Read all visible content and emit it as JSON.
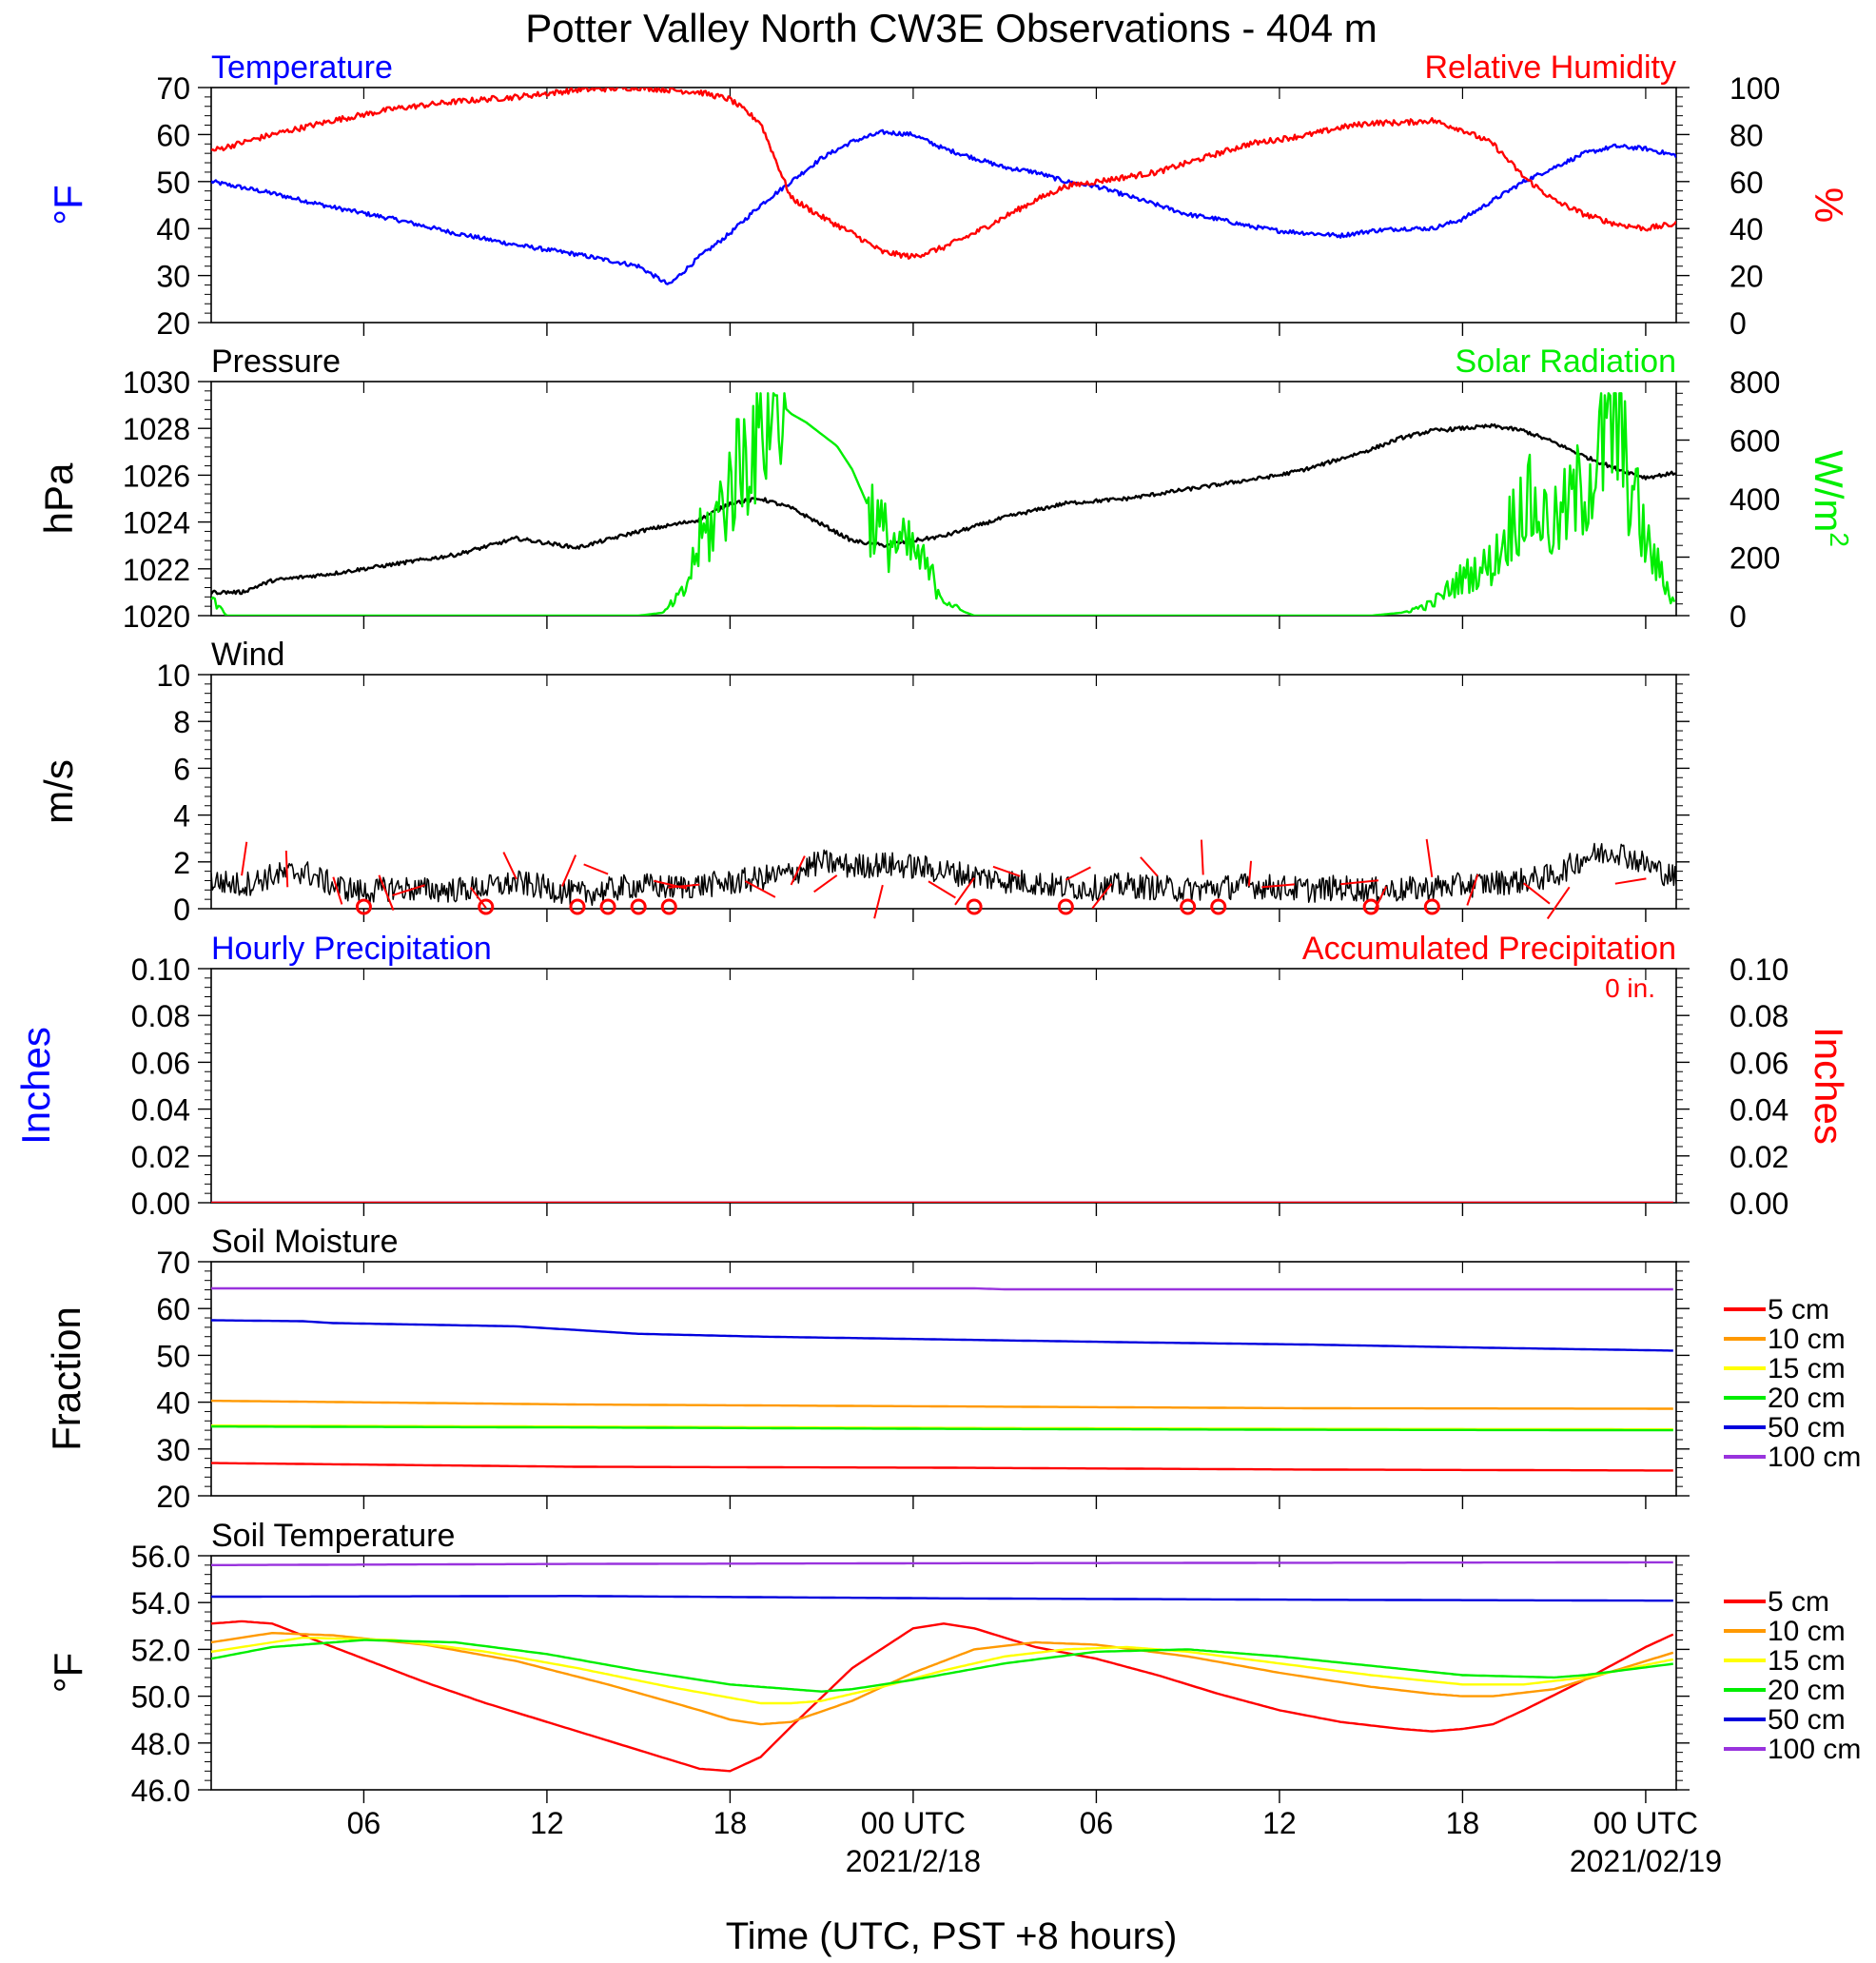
{
  "figure": {
    "title": "Potter Valley North CW3E Observations - 404 m",
    "xlabel": "Time (UTC, PST +8 hours)",
    "x_ticks": [
      {
        "t": 6,
        "label": "06",
        "sub": ""
      },
      {
        "t": 12,
        "label": "12",
        "sub": ""
      },
      {
        "t": 18,
        "label": "18",
        "sub": ""
      },
      {
        "t": 24,
        "label": "00 UTC",
        "sub": "2021/2/18"
      },
      {
        "t": 30,
        "label": "06",
        "sub": ""
      },
      {
        "t": 36,
        "label": "12",
        "sub": ""
      },
      {
        "t": 42,
        "label": "18",
        "sub": ""
      },
      {
        "t": 48,
        "label": "00 UTC",
        "sub": "2021/02/19"
      }
    ]
  },
  "colors": {
    "temperature": "#0000ff",
    "humidity": "#ff0000",
    "pressure": "#000000",
    "solar": "#00ee00",
    "wind": "#000000",
    "wind_barb": "#ff0000",
    "soil_5": "#ff0000",
    "soil_10": "#ff9900",
    "soil_15": "#ffff00",
    "soil_20": "#00ee00",
    "soil_50": "#0000dd",
    "soil_100": "#9933dd"
  },
  "chart_data": [
    {
      "type": "line",
      "id": "temperature_humidity",
      "left_title": "Temperature",
      "right_title": "Relative Humidity",
      "ylabel_left": "°F",
      "ylabel_right": "%",
      "x_range_hours": [
        1,
        49
      ],
      "ylim_left": [
        20,
        70
      ],
      "ylim_right": [
        0,
        100
      ],
      "yticks_left": [
        "20",
        "30",
        "40",
        "50",
        "60",
        "70"
      ],
      "yticks_right": [
        "0",
        "20",
        "40",
        "60",
        "80",
        "100"
      ],
      "series": [
        {
          "name": "Temperature",
          "axis": "left",
          "x": [
            1,
            3,
            5,
            7,
            9,
            11,
            13,
            15,
            16,
            17,
            18,
            19,
            20,
            21,
            22,
            23,
            24,
            25,
            26,
            27,
            28,
            29,
            30,
            31,
            32,
            33,
            34,
            35,
            36,
            37,
            38,
            39,
            40,
            41,
            42,
            43,
            44,
            45,
            46,
            47,
            48,
            49
          ],
          "y": [
            50,
            47.5,
            44.5,
            42,
            39,
            36.5,
            34.5,
            32,
            28,
            34,
            39,
            45,
            50,
            55,
            58.5,
            60.5,
            60,
            57,
            55,
            53,
            52,
            50,
            49,
            47,
            45,
            43,
            42,
            40.5,
            39.5,
            39,
            38.5,
            39.5,
            40,
            40,
            42,
            46,
            50,
            53,
            56,
            57.5,
            57,
            55.5
          ]
        },
        {
          "name": "Relative Humidity",
          "axis": "right",
          "x": [
            1,
            3,
            5,
            7,
            9,
            11,
            13,
            15,
            17,
            18,
            19,
            20,
            21,
            22,
            23,
            24,
            25,
            26,
            27,
            28,
            29,
            30,
            31,
            32,
            33,
            34,
            35,
            36,
            37,
            38,
            39,
            40,
            41,
            42,
            43,
            44,
            45,
            46,
            47,
            48,
            49
          ],
          "y": [
            73,
            80,
            86,
            91,
            94,
            96,
            99,
            100,
            98,
            95,
            85,
            53,
            45,
            38,
            30,
            28,
            32,
            38,
            45,
            52,
            58,
            60,
            62,
            64,
            68,
            72,
            76,
            78,
            80,
            83,
            85,
            85,
            86,
            82,
            76,
            62,
            52,
            46,
            42,
            40,
            42
          ]
        }
      ]
    },
    {
      "type": "line",
      "id": "pressure_solar",
      "left_title": "Pressure",
      "right_title": "Solar Radiation",
      "ylabel_left": "hPa",
      "ylabel_right": "W/m",
      "ylabel_right_sup": "2",
      "x_range_hours": [
        1,
        49
      ],
      "ylim_left": [
        1020,
        1030
      ],
      "ylim_right": [
        0,
        800
      ],
      "yticks_left": [
        "1020",
        "1022",
        "1024",
        "1026",
        "1028",
        "1030"
      ],
      "yticks_right": [
        "0",
        "200",
        "400",
        "600",
        "800"
      ],
      "series": [
        {
          "name": "Pressure",
          "axis": "left",
          "x": [
            1,
            2,
            3,
            5,
            7,
            9,
            11,
            13,
            15,
            17,
            18,
            19,
            20,
            21,
            22,
            23,
            24,
            25,
            26,
            27,
            28,
            29,
            30,
            31,
            32,
            33,
            34,
            35,
            36,
            37,
            38,
            39,
            40,
            41,
            42,
            43,
            44,
            45,
            46,
            47,
            48,
            49
          ],
          "y": [
            1021,
            1021,
            1021.5,
            1021.8,
            1022.2,
            1022.6,
            1023.3,
            1022.9,
            1023.6,
            1024.1,
            1024.8,
            1025,
            1024.6,
            1023.9,
            1023.2,
            1023,
            1023.2,
            1023.4,
            1023.8,
            1024.2,
            1024.5,
            1024.8,
            1024.9,
            1025,
            1025.2,
            1025.4,
            1025.6,
            1025.8,
            1026,
            1026.3,
            1026.7,
            1027.1,
            1027.6,
            1027.9,
            1028,
            1028.1,
            1027.9,
            1027.4,
            1026.8,
            1026.3,
            1025.9,
            1026.1
          ]
        },
        {
          "name": "Solar Radiation",
          "axis": "right",
          "x": [
            1,
            1.5,
            3,
            15,
            15.8,
            16.5,
            17,
            17.5,
            18,
            18.5,
            19,
            19.5,
            20,
            20.5,
            21,
            21.5,
            22,
            22.5,
            23,
            23.5,
            24,
            24.5,
            25,
            25.5,
            26,
            38,
            39,
            40,
            41,
            42,
            43,
            44,
            45,
            46,
            47,
            48,
            49
          ],
          "y": [
            60,
            0,
            0,
            0,
            10,
            80,
            250,
            320,
            450,
            560,
            680,
            740,
            690,
            660,
            620,
            580,
            500,
            380,
            280,
            240,
            220,
            150,
            60,
            20,
            0,
            0,
            0,
            10,
            40,
            130,
            180,
            400,
            300,
            450,
            650,
            250,
            30
          ]
        }
      ]
    },
    {
      "type": "line",
      "id": "wind",
      "left_title": "Wind",
      "ylabel_left": "m/s",
      "x_range_hours": [
        1,
        49
      ],
      "ylim_left": [
        0,
        10
      ],
      "yticks_left": [
        "0",
        "2",
        "4",
        "6",
        "8",
        "10"
      ],
      "series": [
        {
          "name": "Wind",
          "axis": "left",
          "x": [
            1,
            2,
            3,
            4,
            5,
            6,
            7,
            8,
            9,
            10,
            11,
            12,
            13,
            14,
            15,
            16,
            17,
            18,
            19,
            20,
            21,
            22,
            23,
            24,
            25,
            26,
            27,
            28,
            29,
            30,
            31,
            32,
            33,
            34,
            35,
            36,
            37,
            38,
            39,
            40,
            41,
            42,
            43,
            44,
            45,
            46,
            47,
            48,
            49
          ],
          "y": [
            1.2,
            1.0,
            1.4,
            1.6,
            1.0,
            0.7,
            0.9,
            0.8,
            0.8,
            0.9,
            1.1,
            0.9,
            0.6,
            0.8,
            1.0,
            0.9,
            1.0,
            1.1,
            1.3,
            1.5,
            2.0,
            1.8,
            1.9,
            1.8,
            1.6,
            1.4,
            1.2,
            1.1,
            0.9,
            0.9,
            1.0,
            0.9,
            0.8,
            0.9,
            1.0,
            0.9,
            0.8,
            0.9,
            0.8,
            0.8,
            0.9,
            1.0,
            1.1,
            1.2,
            1.4,
            2.2,
            2.5,
            1.9,
            1.3
          ]
        }
      ],
      "calm_times": [
        6,
        10,
        13,
        14,
        15,
        16,
        26,
        29,
        33,
        34,
        39,
        41
      ]
    },
    {
      "type": "line",
      "id": "precipitation",
      "left_title": "Hourly Precipitation",
      "right_title": "Accumulated Precipitation",
      "annotation": "0 in.",
      "ylabel_left": "Inches",
      "ylabel_right": "Inches",
      "x_range_hours": [
        1,
        49
      ],
      "ylim_left": [
        0,
        0.1
      ],
      "ylim_right": [
        0,
        0.1
      ],
      "yticks_left": [
        "0.00",
        "0.02",
        "0.04",
        "0.06",
        "0.08",
        "0.10"
      ],
      "yticks_right": [
        "0.00",
        "0.02",
        "0.04",
        "0.06",
        "0.08",
        "0.10"
      ],
      "series": [
        {
          "name": "Hourly Precipitation",
          "axis": "left",
          "x": [
            1,
            49
          ],
          "y": [
            0,
            0
          ]
        },
        {
          "name": "Accumulated Precipitation",
          "axis": "right",
          "x": [
            1,
            49
          ],
          "y": [
            0,
            0
          ]
        }
      ]
    },
    {
      "type": "line",
      "id": "soil_moisture",
      "left_title": "Soil Moisture",
      "ylabel_left": "Fraction",
      "x_range_hours": [
        1,
        49
      ],
      "ylim_left": [
        20,
        70
      ],
      "yticks_left": [
        "20",
        "30",
        "40",
        "50",
        "60",
        "70"
      ],
      "legend": [
        "5 cm",
        "10 cm",
        "15 cm",
        "20 cm",
        "50 cm",
        "100 cm"
      ],
      "series": [
        {
          "name": "5 cm",
          "axis": "left",
          "x": [
            1,
            13,
            25,
            37,
            49
          ],
          "y": [
            27,
            26.2,
            26,
            25.6,
            25.4
          ]
        },
        {
          "name": "10 cm",
          "axis": "left",
          "x": [
            1,
            13,
            25,
            37,
            49
          ],
          "y": [
            40.3,
            39.5,
            39.1,
            38.7,
            38.6
          ]
        },
        {
          "name": "15 cm",
          "axis": "left",
          "x": [
            1,
            13,
            25,
            37,
            49
          ],
          "y": [
            35,
            34.8,
            34.5,
            34.3,
            34.2
          ]
        },
        {
          "name": "20 cm",
          "axis": "left",
          "x": [
            1,
            13,
            25,
            37,
            49
          ],
          "y": [
            34.8,
            34.6,
            34.3,
            34.1,
            34
          ]
        },
        {
          "name": "50 cm",
          "axis": "left",
          "x": [
            1,
            4,
            5,
            11,
            13,
            14,
            15,
            19,
            25,
            31,
            37,
            43,
            49
          ],
          "y": [
            57.5,
            57.3,
            56.9,
            56.2,
            55.4,
            55,
            54.6,
            54,
            53.4,
            52.8,
            52.3,
            51.6,
            51
          ]
        },
        {
          "name": "100 cm",
          "axis": "left",
          "x": [
            1,
            13,
            26,
            27,
            37,
            49
          ],
          "y": [
            64.3,
            64.3,
            64.3,
            64.1,
            64.1,
            64.1
          ]
        }
      ]
    },
    {
      "type": "line",
      "id": "soil_temperature",
      "left_title": "Soil Temperature",
      "ylabel_left": "°F",
      "x_range_hours": [
        1,
        49
      ],
      "ylim_left": [
        46,
        56
      ],
      "yticks_left": [
        "46.0",
        "48.0",
        "50.0",
        "52.0",
        "54.0",
        "56.0"
      ],
      "legend": [
        "5 cm",
        "10 cm",
        "15 cm",
        "20 cm",
        "50 cm",
        "100 cm"
      ],
      "series": [
        {
          "name": "5 cm",
          "axis": "left",
          "x": [
            1,
            2,
            3,
            4,
            6,
            8,
            10,
            12,
            14,
            16,
            17,
            18,
            19,
            20,
            22,
            24,
            25,
            26,
            27,
            28,
            30,
            32,
            34,
            36,
            38,
            40,
            41,
            42,
            43,
            44,
            46,
            48,
            49
          ],
          "y": [
            53.1,
            53.2,
            53.1,
            52.6,
            51.6,
            50.6,
            49.7,
            48.9,
            48.1,
            47.3,
            46.9,
            46.8,
            47.4,
            48.7,
            51.2,
            52.9,
            53.1,
            52.9,
            52.5,
            52.1,
            51.6,
            50.9,
            50.1,
            49.4,
            48.9,
            48.6,
            48.5,
            48.6,
            48.8,
            49.4,
            50.7,
            52.1,
            52.7
          ]
        },
        {
          "name": "10 cm",
          "axis": "left",
          "x": [
            1,
            3,
            5,
            8,
            11,
            14,
            17,
            18,
            19,
            20,
            22,
            24,
            26,
            28,
            30,
            33,
            36,
            39,
            41,
            42,
            43,
            45,
            47,
            49
          ],
          "y": [
            52.3,
            52.7,
            52.6,
            52.2,
            51.5,
            50.5,
            49.4,
            49.0,
            48.8,
            48.9,
            49.8,
            51.0,
            52.0,
            52.3,
            52.2,
            51.7,
            51.0,
            50.4,
            50.1,
            50.0,
            50.0,
            50.3,
            51.1,
            51.9
          ]
        },
        {
          "name": "15 cm",
          "axis": "left",
          "x": [
            1,
            4,
            7,
            10,
            13,
            16,
            19,
            20,
            21,
            23,
            25,
            27,
            29,
            31,
            33,
            36,
            39,
            42,
            44,
            46,
            49
          ],
          "y": [
            51.9,
            52.5,
            52.4,
            51.9,
            51.2,
            50.4,
            49.7,
            49.7,
            49.8,
            50.4,
            51.1,
            51.7,
            52.0,
            52.1,
            51.9,
            51.4,
            50.9,
            50.5,
            50.5,
            50.8,
            51.6
          ]
        },
        {
          "name": "20 cm",
          "axis": "left",
          "x": [
            1,
            3,
            6,
            9,
            12,
            15,
            18,
            21,
            22,
            24,
            27,
            30,
            33,
            36,
            39,
            42,
            45,
            46,
            49
          ],
          "y": [
            51.6,
            52.1,
            52.4,
            52.3,
            51.8,
            51.1,
            50.5,
            50.2,
            50.3,
            50.7,
            51.4,
            51.9,
            52.0,
            51.7,
            51.3,
            50.9,
            50.8,
            50.9,
            51.4
          ]
        },
        {
          "name": "50 cm",
          "axis": "left",
          "x": [
            1,
            13,
            25,
            37,
            49
          ],
          "y": [
            54.25,
            54.28,
            54.18,
            54.12,
            54.08
          ]
        },
        {
          "name": "100 cm",
          "axis": "left",
          "x": [
            1,
            13,
            25,
            37,
            49
          ],
          "y": [
            55.6,
            55.65,
            55.68,
            55.7,
            55.72
          ]
        }
      ]
    }
  ]
}
